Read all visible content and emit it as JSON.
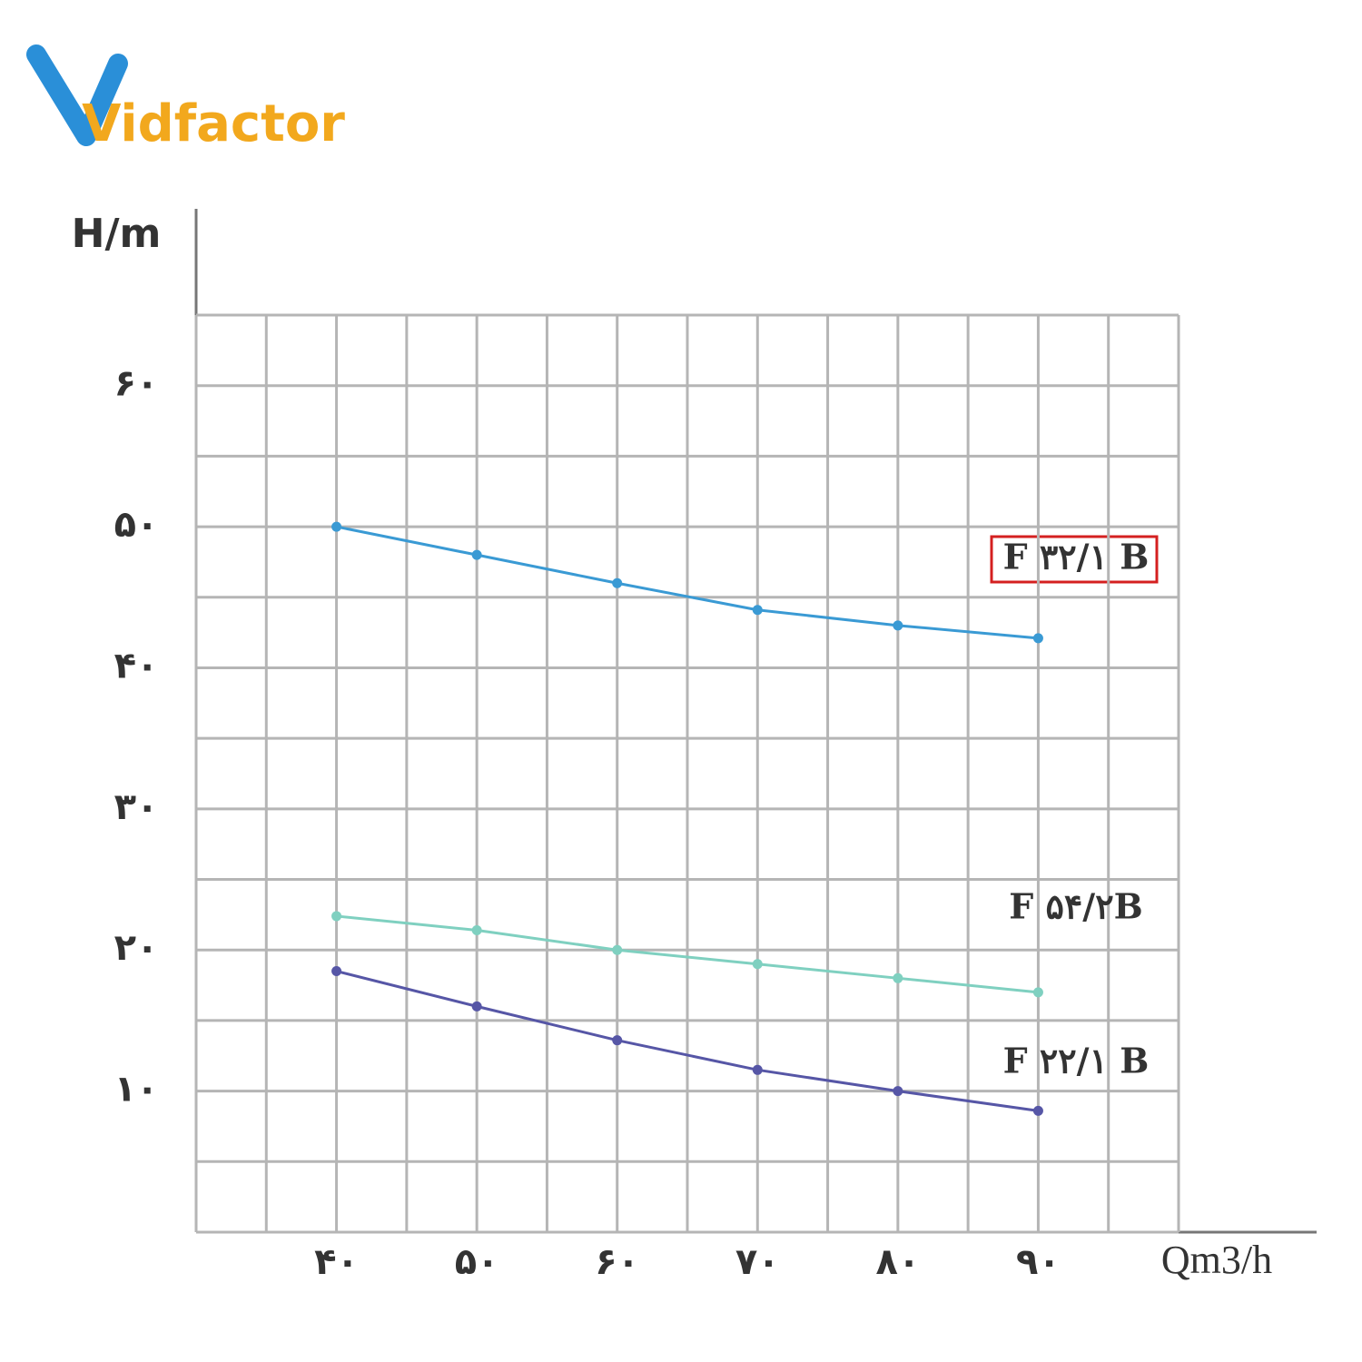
{
  "brand": "Vidfactor",
  "chart_data": {
    "type": "line",
    "ylabel": "H/m",
    "xlabel": "Qm3/h",
    "xlim": [
      30,
      100
    ],
    "ylim": [
      0,
      65
    ],
    "x": [
      40,
      50,
      60,
      70,
      80,
      90
    ],
    "xticks": [
      {
        "value": 40,
        "label": "۴۰"
      },
      {
        "value": 50,
        "label": "۵۰"
      },
      {
        "value": 60,
        "label": "۶۰"
      },
      {
        "value": 70,
        "label": "۷۰"
      },
      {
        "value": 80,
        "label": "۸۰"
      },
      {
        "value": 90,
        "label": "۹۰"
      }
    ],
    "yticks": [
      {
        "value": 10,
        "label": "۱۰"
      },
      {
        "value": 20,
        "label": "۲۰"
      },
      {
        "value": 30,
        "label": "۳۰"
      },
      {
        "value": 40,
        "label": "۴۰"
      },
      {
        "value": 50,
        "label": "۵۰"
      },
      {
        "value": 60,
        "label": "۶۰"
      }
    ],
    "xgrid": [
      30,
      35,
      40,
      45,
      50,
      55,
      60,
      65,
      70,
      75,
      80,
      85,
      90,
      95,
      100
    ],
    "ygrid": [
      0,
      5,
      10,
      15,
      20,
      25,
      30,
      35,
      40,
      45,
      50,
      55,
      60,
      65
    ],
    "series": [
      {
        "name": "F ۳۲/۱ B",
        "color": "#3a9ad4",
        "values": [
          50,
          48,
          46,
          44.1,
          43,
          42.1
        ]
      },
      {
        "name": "F ۵۴/۲B",
        "color": "#7fd0c0",
        "values": [
          22.4,
          21.4,
          20,
          19,
          18,
          17
        ]
      },
      {
        "name": "F ۲۲/۱ B",
        "color": "#5656a6",
        "values": [
          18.5,
          16,
          13.6,
          11.5,
          10,
          8.6
        ]
      }
    ]
  }
}
